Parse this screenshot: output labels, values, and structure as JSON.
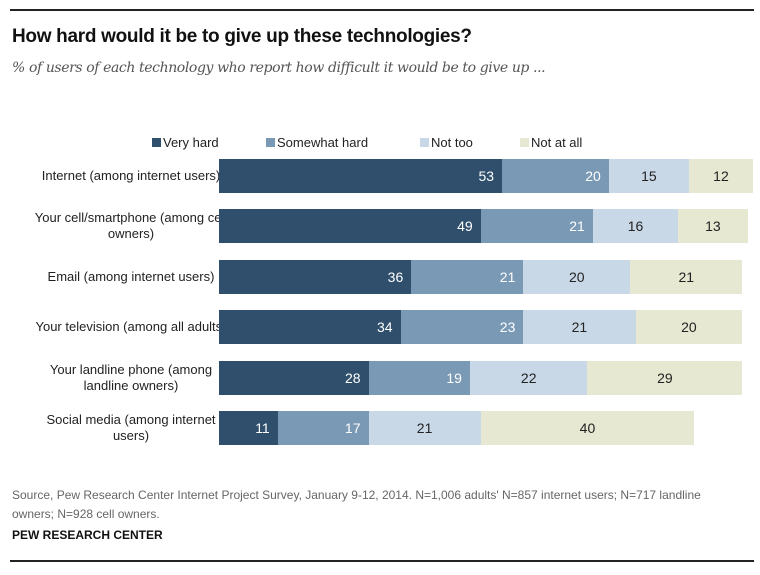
{
  "chart_data": {
    "type": "bar",
    "orientation": "horizontal-stacked",
    "title": "How hard would it be to give up these technologies?",
    "subtitle": "% of users of each technology who report how difficult it would be to give up ...",
    "categories": [
      "Internet (among internet users)",
      "Your cell/smartphone (among cell owners)",
      "Email (among internet users)",
      "Your television (among all adults)",
      "Your landline phone (among landline owners)",
      "Social media (among internet users)"
    ],
    "series": [
      {
        "name": "Very hard",
        "color": "#2f4f6c",
        "values": [
          53,
          49,
          36,
          34,
          28,
          11
        ]
      },
      {
        "name": "Somewhat hard",
        "color": "#7a99b4",
        "values": [
          20,
          21,
          21,
          23,
          19,
          17
        ]
      },
      {
        "name": "Not too",
        "color": "#c9d8e6",
        "values": [
          15,
          16,
          20,
          21,
          22,
          21
        ]
      },
      {
        "name": "Not at all",
        "color": "#e6e8d2",
        "values": [
          12,
          13,
          21,
          20,
          29,
          40
        ]
      }
    ],
    "legend_position": "top",
    "grid": false,
    "xlim": [
      0,
      100
    ]
  },
  "footer": {
    "source": "Source, Pew Research Center Internet Project Survey, January 9-12, 2014. N=1,006 adults' N=857 internet users; N=717 landline owners; N=928 cell owners.",
    "brand": "PEW RESEARCH CENTER"
  }
}
